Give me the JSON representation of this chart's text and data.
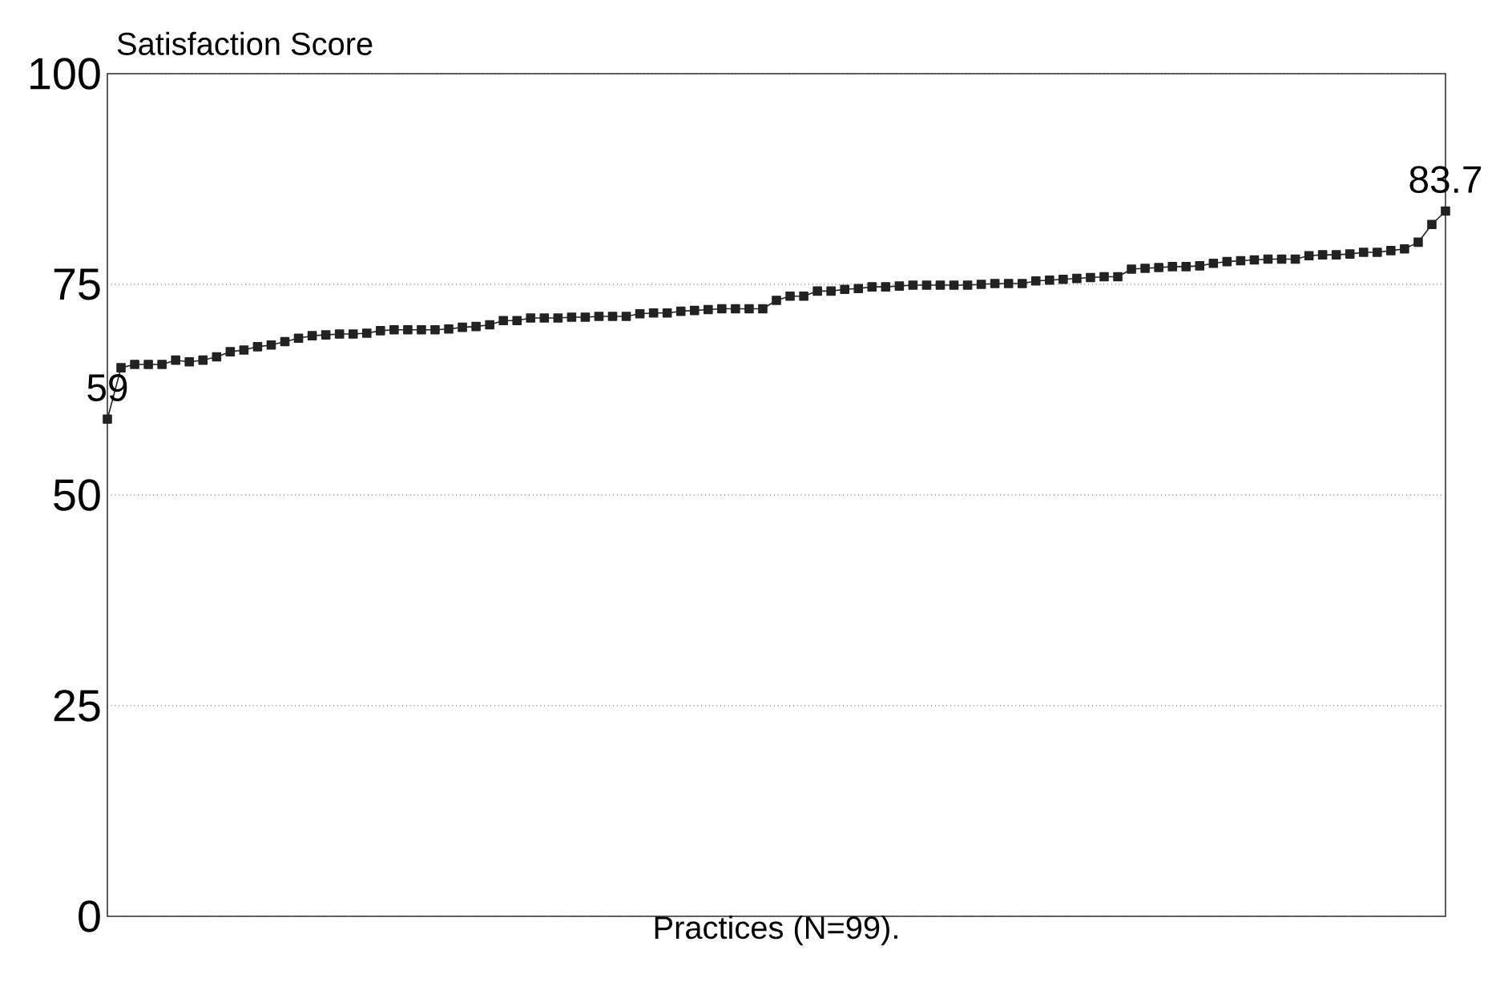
{
  "chart_data": {
    "type": "line",
    "ylabel": "Satisfaction Score",
    "xlabel": "Practices (N=99).",
    "categories": [
      null,
      null,
      null,
      null,
      null,
      null,
      null,
      null,
      null,
      null,
      null,
      null,
      null,
      null,
      null,
      null,
      null,
      null,
      null,
      null,
      null,
      null,
      null,
      null,
      null,
      null,
      null,
      null,
      null,
      null,
      null,
      null,
      null,
      null,
      null,
      null,
      null,
      null,
      null,
      null,
      null,
      null,
      null,
      null,
      null,
      null,
      null,
      null,
      null,
      null,
      null,
      null,
      null,
      null,
      null,
      null,
      null,
      null,
      null,
      null,
      null,
      null,
      null,
      null,
      null,
      null,
      null,
      null,
      null,
      null,
      null,
      null,
      null,
      null,
      null,
      null,
      null,
      null,
      null,
      null,
      null,
      null,
      null,
      null,
      null,
      null,
      null,
      null,
      null,
      null,
      null,
      null,
      null,
      null,
      null,
      null,
      null,
      null,
      null
    ],
    "values": [
      59,
      65.1,
      65.5,
      65.5,
      65.5,
      66.0,
      65.8,
      66.0,
      66.4,
      67.0,
      67.2,
      67.6,
      67.8,
      68.2,
      68.6,
      68.9,
      69.0,
      69.1,
      69.1,
      69.2,
      69.5,
      69.6,
      69.6,
      69.6,
      69.6,
      69.7,
      69.9,
      70.0,
      70.2,
      70.7,
      70.7,
      71.0,
      71.0,
      71.0,
      71.1,
      71.1,
      71.2,
      71.2,
      71.2,
      71.5,
      71.6,
      71.6,
      71.8,
      71.9,
      72.0,
      72.1,
      72.1,
      72.1,
      72.1,
      73.1,
      73.6,
      73.6,
      74.2,
      74.2,
      74.4,
      74.5,
      74.7,
      74.7,
      74.8,
      74.9,
      74.9,
      74.9,
      74.9,
      74.9,
      75.0,
      75.1,
      75.1,
      75.1,
      75.4,
      75.5,
      75.6,
      75.7,
      75.8,
      75.9,
      75.9,
      76.8,
      76.9,
      77.0,
      77.1,
      77.1,
      77.2,
      77.5,
      77.7,
      77.8,
      77.9,
      78.0,
      78.0,
      78.0,
      78.4,
      78.5,
      78.5,
      78.6,
      78.8,
      78.8,
      79.0,
      79.2,
      80.0,
      82.1,
      83.7
    ],
    "value_labels": [
      "59",
      null,
      null,
      null,
      null,
      null,
      null,
      null,
      null,
      null,
      null,
      null,
      null,
      null,
      null,
      null,
      null,
      null,
      null,
      null,
      null,
      null,
      null,
      null,
      null,
      null,
      null,
      null,
      null,
      null,
      null,
      null,
      null,
      null,
      null,
      null,
      null,
      null,
      null,
      null,
      null,
      null,
      null,
      null,
      null,
      null,
      null,
      null,
      null,
      null,
      null,
      null,
      null,
      null,
      null,
      null,
      null,
      null,
      null,
      null,
      null,
      null,
      null,
      null,
      null,
      null,
      null,
      null,
      null,
      null,
      null,
      null,
      null,
      null,
      null,
      null,
      null,
      null,
      null,
      null,
      null,
      null,
      null,
      null,
      null,
      null,
      null,
      null,
      null,
      null,
      null,
      null,
      null,
      null,
      null,
      null,
      null,
      null,
      "83.7"
    ],
    "color": "#222222",
    "marker": "square",
    "ylim": [
      0,
      100
    ],
    "yticks": [
      0,
      25,
      50,
      75,
      100
    ],
    "grid": "y",
    "tick_labels": "y"
  }
}
